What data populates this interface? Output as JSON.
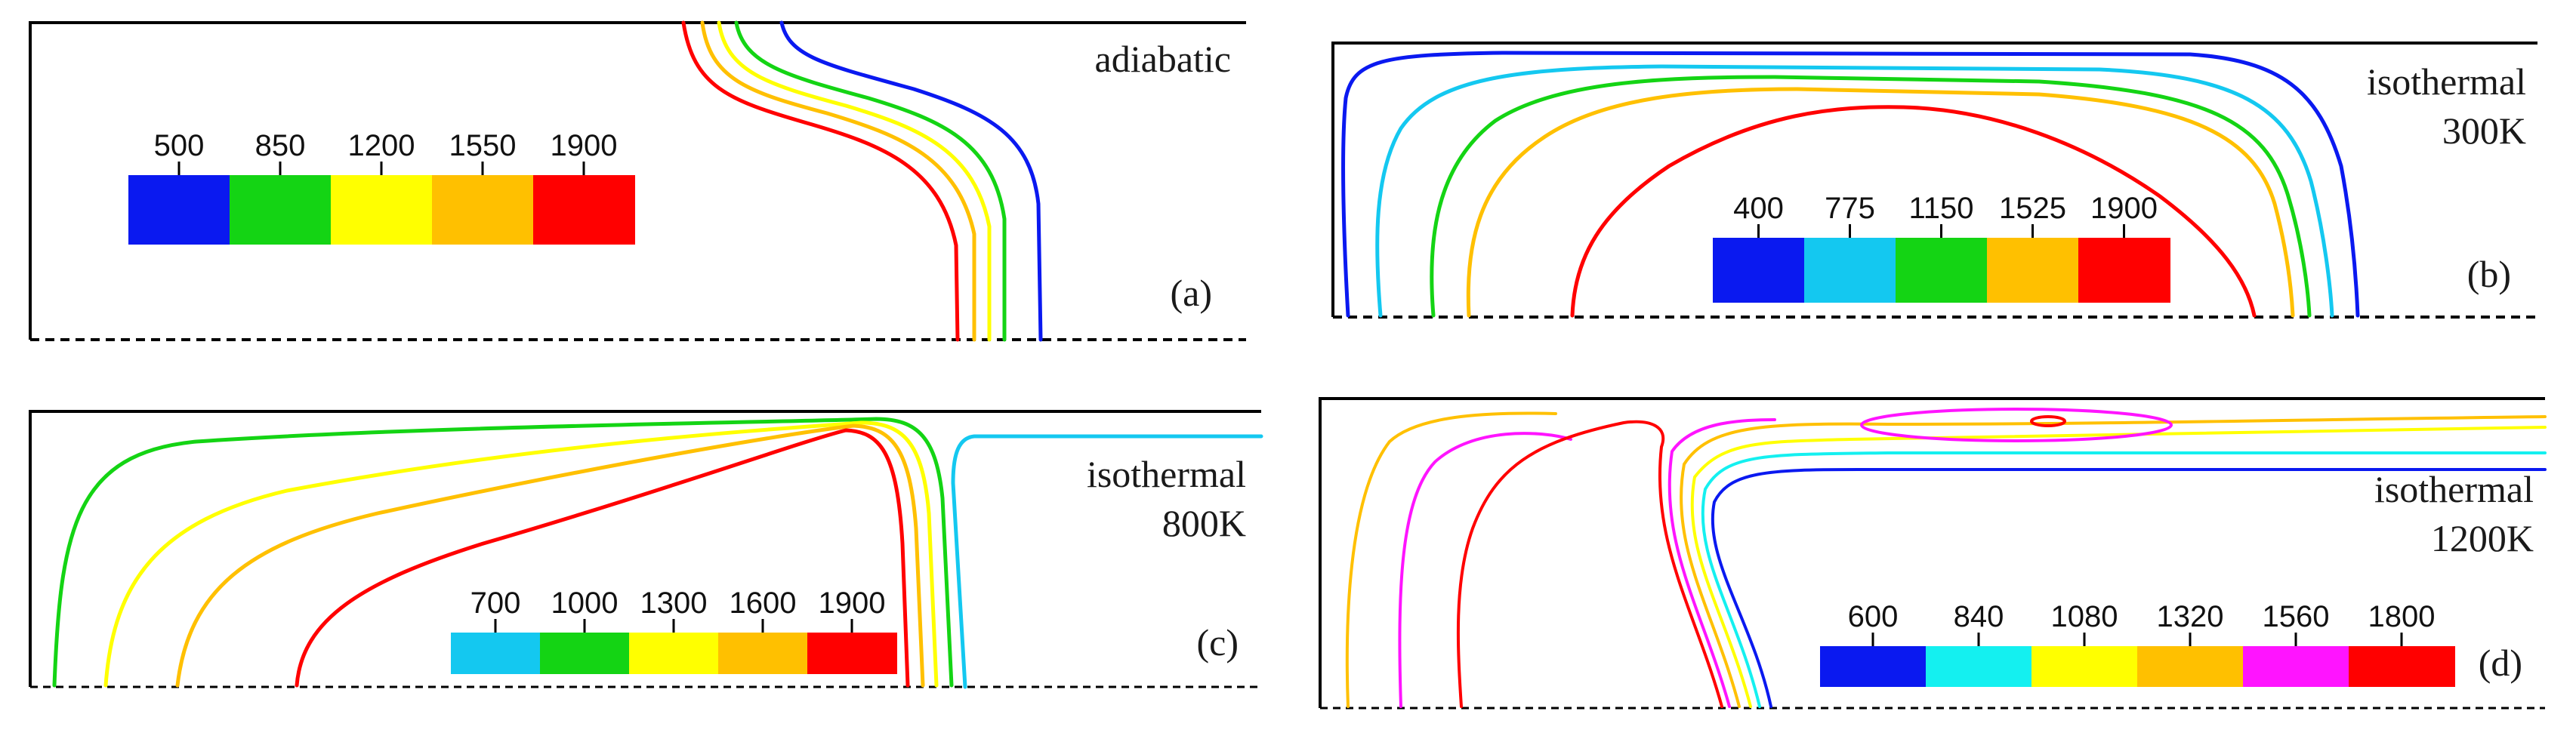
{
  "figure": {
    "panels": {
      "a": {
        "letter": "(a)",
        "title": "adiabatic",
        "legend": {
          "ticks": [
            "500",
            "850",
            "1200",
            "1550",
            "1900"
          ],
          "colors": [
            "#0a19f0",
            "#14d414",
            "#ffff00",
            "#ffc000",
            "#ff0000"
          ]
        }
      },
      "b": {
        "letter": "(b)",
        "title_line1": "isothermal",
        "title_line2": "300K",
        "legend": {
          "ticks": [
            "400",
            "775",
            "1150",
            "1525",
            "1900"
          ],
          "colors": [
            "#0a19f0",
            "#14c8f0",
            "#14d414",
            "#ffc000",
            "#ff0000"
          ]
        }
      },
      "c": {
        "letter": "(c)",
        "title_line1": "isothermal",
        "title_line2": "800K",
        "legend": {
          "ticks": [
            "700",
            "1000",
            "1300",
            "1600",
            "1900"
          ],
          "colors": [
            "#14c8f0",
            "#14d414",
            "#ffff00",
            "#ffc000",
            "#ff0000"
          ]
        }
      },
      "d": {
        "letter": "(d)",
        "title_line1": "isothermal",
        "title_line2": "1200K",
        "legend": {
          "ticks": [
            "600",
            "840",
            "1080",
            "1320",
            "1560",
            "1800"
          ],
          "colors": [
            "#0a19f0",
            "#14f0f0",
            "#ffff00",
            "#ffc000",
            "#ff14ff",
            "#ff0000"
          ]
        }
      }
    }
  }
}
